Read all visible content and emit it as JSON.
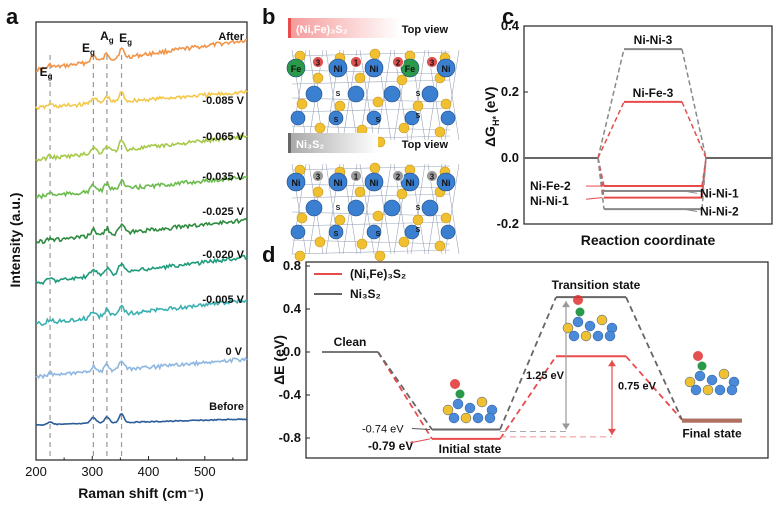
{
  "panels": {
    "a": "a",
    "b": "b",
    "c": "c",
    "d": "d"
  },
  "panel_b": {
    "alloy_title": "(Ni,Fe)₃S₂",
    "nickel_title": "Ni₃S₂",
    "view_label": "Top view",
    "alloy_atom_labels": [
      "Fe",
      "Ni",
      "Ni",
      "Fe",
      "Ni"
    ],
    "alloy_site_labels": [
      "3",
      "1",
      "2",
      "3"
    ],
    "nickel_atom_labels": [
      "Ni",
      "Ni",
      "Ni",
      "Ni",
      "Ni"
    ],
    "nickel_site_labels": [
      "3",
      "1",
      "2",
      "3"
    ],
    "s_label": "S",
    "colors": {
      "alloy_title_bg": "#f7a8a8",
      "nickel_title_bg": "#b8b8b8",
      "ni": "#3b7fd1",
      "fe": "#2a9a4a",
      "s": "#f0c030",
      "site_alloy": "#e05050",
      "site_ni": "#9a9a9a"
    }
  },
  "chart_data": [
    {
      "panel": "a",
      "type": "line",
      "xlabel": "Raman shift (cm⁻¹)",
      "ylabel": "Intensity (a.u.)",
      "xlim": [
        200,
        575
      ],
      "xticks": [
        200,
        300,
        400,
        500
      ],
      "peak_positions": [
        225,
        302,
        326,
        352
      ],
      "peak_labels": [
        "E",
        "E",
        "A",
        "E"
      ],
      "peak_subscript": "g",
      "series": [
        {
          "name": "After",
          "color": "#f0944a"
        },
        {
          "name": "-0.085 V",
          "color": "#f2c94a"
        },
        {
          "name": "-0.065 V",
          "color": "#a6c94a"
        },
        {
          "name": "-0.035 V",
          "color": "#6cbb4e"
        },
        {
          "name": "-0.025 V",
          "color": "#2e8b3e"
        },
        {
          "name": "-0.020 V",
          "color": "#1f9b7c"
        },
        {
          "name": "-0.005 V",
          "color": "#3bb0b0"
        },
        {
          "name": "0 V",
          "color": "#8fb8e0"
        },
        {
          "name": "Before",
          "color": "#2a5d9a"
        }
      ]
    },
    {
      "panel": "c",
      "type": "line",
      "xlabel": "Reaction coordinate",
      "ylabel": "ΔG",
      "ylabel_sub": "H*",
      "ylabel_unit": "(eV)",
      "ylim": [
        -0.2,
        0.4
      ],
      "yticks": [
        "0.4",
        "0.2",
        "0.0",
        "-0.2"
      ],
      "series": [
        {
          "name": "Ni-Ni-3",
          "value": 0.33,
          "color": "#888888"
        },
        {
          "name": "Ni-Fe-3",
          "value": 0.17,
          "color": "#e84b4b"
        },
        {
          "name": "Ni-Fe-2",
          "value": -0.085,
          "color": "#e84b4b"
        },
        {
          "name": "Ni-Ni-1",
          "value": -0.1,
          "color": "#888888"
        },
        {
          "name": "Ni-Ni-1",
          "value": -0.12,
          "color": "#e84b4b"
        },
        {
          "name": "Ni-Ni-2",
          "value": -0.155,
          "color": "#888888"
        }
      ],
      "left_labels": [
        "Ni-Fe-2",
        "Ni-Ni-1"
      ],
      "right_labels": [
        "Ni-Ni-1",
        "Ni-Ni-2"
      ],
      "top_labels": [
        "Ni-Ni-3",
        "Ni-Fe-3"
      ]
    },
    {
      "panel": "d",
      "type": "line",
      "ylabel": "ΔE (eV)",
      "ylim": [
        -0.8,
        0.8
      ],
      "yticks": [
        "0.8",
        "0.4",
        "0.0",
        "-0.4",
        "-0.8"
      ],
      "legend": [
        {
          "name": "(Ni,Fe)₃S₂",
          "color": "#e84b4b"
        },
        {
          "name": "Ni₃S₂",
          "color": "#666666"
        }
      ],
      "states": [
        "Clean",
        "Initial state",
        "Transition state",
        "Final state"
      ],
      "series": [
        {
          "name": "(Ni,Fe)₃S₂",
          "values": [
            0.0,
            -0.79,
            -0.04,
            -0.63
          ],
          "color": "#e84b4b"
        },
        {
          "name": "Ni₃S₂",
          "values": [
            0.0,
            -0.74,
            0.51,
            -0.63
          ],
          "color": "#666666"
        }
      ],
      "annotations": [
        "-0.74 eV",
        "-0.79 eV",
        "1.25 eV",
        "0.75 eV"
      ]
    }
  ]
}
